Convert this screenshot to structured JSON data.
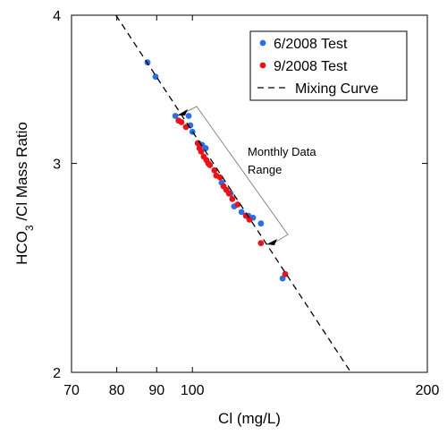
{
  "chart_data": {
    "type": "scatter",
    "xlabel": "Cl (mg/L)",
    "ylabel": [
      "HCO",
      "3",
      " /Cl Mass Ratio"
    ],
    "xscale": "log",
    "yscale": "log",
    "xlim": [
      70,
      200
    ],
    "ylim": [
      2,
      4
    ],
    "xticks": [
      70,
      80,
      90,
      100,
      200
    ],
    "yticks": [
      2,
      3,
      4
    ],
    "legend": "upper right",
    "annotation": [
      "Monthly Data",
      "Range"
    ],
    "series": [
      {
        "name": "6/2008 Test",
        "color": "#2b6fe8",
        "kind": "points",
        "x": [
          87.6,
          89.7,
          95.1,
          98.9,
          99.4,
          100.0,
          101.8,
          102.9,
          104.0,
          109.0,
          111.9,
          113.1,
          115.6,
          118.0,
          119.6,
          122.4,
          130.5
        ],
        "values": [
          3.65,
          3.55,
          3.29,
          3.29,
          3.23,
          3.19,
          3.12,
          3.11,
          3.09,
          2.89,
          2.83,
          2.76,
          2.73,
          2.71,
          2.7,
          2.67,
          2.4
        ]
      },
      {
        "name": "9/2008 Test",
        "color": "#e8141a",
        "kind": "points",
        "x": [
          96.0,
          96.8,
          98.1,
          101.6,
          102.1,
          102.6,
          103.4,
          104.2,
          104.8,
          105.3,
          106.7,
          107.3,
          108.5,
          109.6,
          110.5,
          111.4,
          112.5,
          114.3,
          117.1,
          118.3,
          122.4,
          131.5
        ],
        "values": [
          3.26,
          3.25,
          3.22,
          3.12,
          3.09,
          3.07,
          3.04,
          3.02,
          3.0,
          2.99,
          2.96,
          2.93,
          2.92,
          2.87,
          2.85,
          2.83,
          2.8,
          2.77,
          2.71,
          2.69,
          2.57,
          2.42
        ]
      },
      {
        "name": "Mixing Curve",
        "color": "#000000",
        "kind": "dashed-line",
        "x": [
          79.8,
          159.6
        ],
        "values": [
          4,
          2
        ]
      }
    ]
  }
}
